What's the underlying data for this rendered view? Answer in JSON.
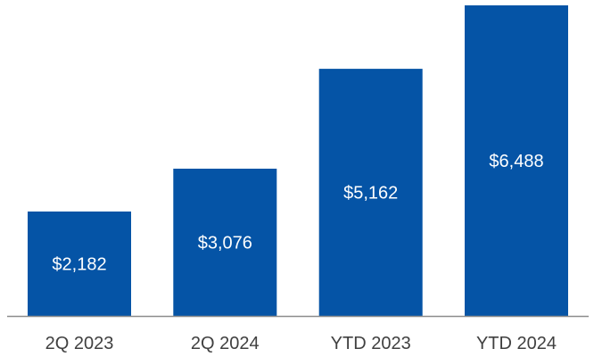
{
  "colors": {
    "bar": "#0554a6",
    "axis": "#8c8c8c",
    "bar_label": "#ffffff",
    "tick_label": "#404040"
  },
  "chart_data": {
    "type": "bar",
    "categories": [
      "2Q 2023",
      "2Q 2024",
      "YTD 2023",
      "YTD 2024"
    ],
    "values": [
      2182,
      3076,
      5162,
      6488
    ],
    "value_labels": [
      "$2,182",
      "$3,076",
      "$5,162",
      "$6,488"
    ],
    "ylim": [
      0,
      6600
    ],
    "grid": false,
    "legend": "none"
  }
}
